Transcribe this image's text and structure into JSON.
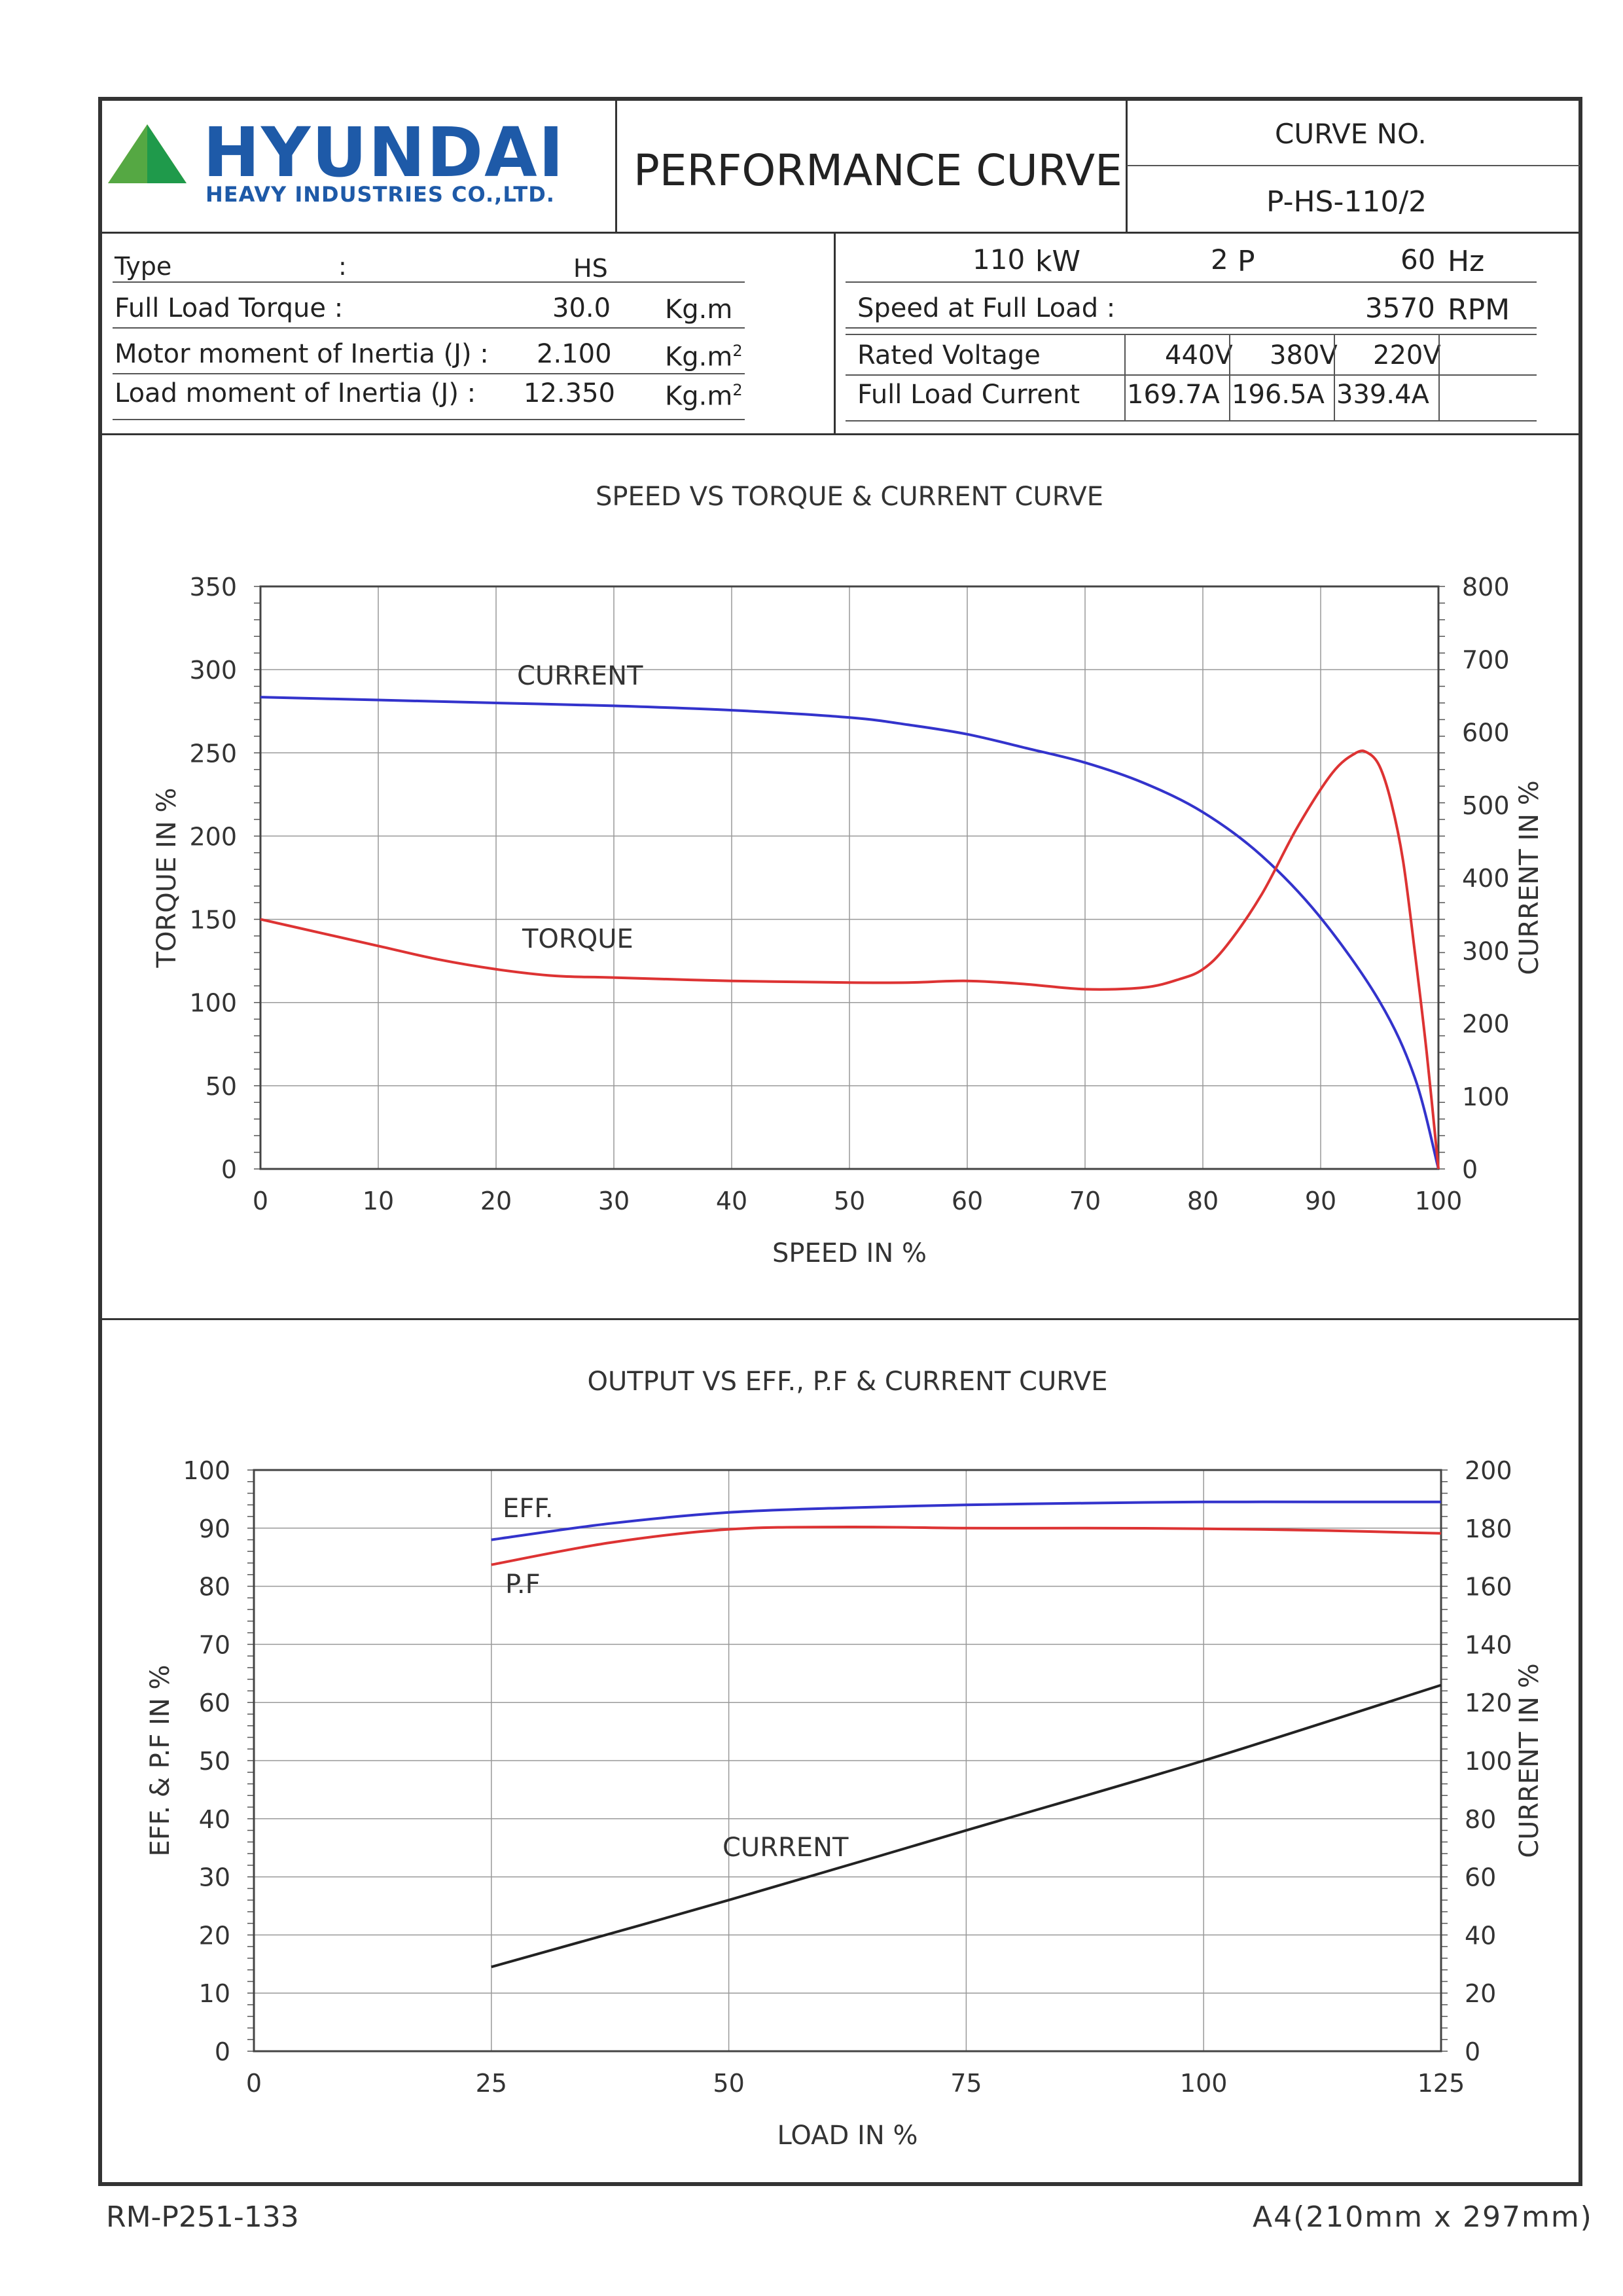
{
  "header": {
    "brand": "HYUNDAI",
    "brand_sub": "HEAVY INDUSTRIES CO.,LTD.",
    "title": "PERFORMANCE CURVE",
    "curve_no_label": "CURVE NO.",
    "curve_no": "P-HS-110/2"
  },
  "specs_left": {
    "type_label": "Type",
    "type_colon": ":",
    "type_value": "HS",
    "torque_label": "Full Load Torque :",
    "torque_value": "30.0",
    "torque_unit": "Kg.m",
    "motor_inertia_label": "Motor moment of Inertia (J) :",
    "motor_inertia_value": "2.100",
    "motor_inertia_unit": "Kg.m",
    "load_inertia_label": "Load moment of Inertia (J) :",
    "load_inertia_value": "12.350",
    "load_inertia_unit": "Kg.m",
    "unit_sup": "2"
  },
  "specs_right": {
    "power_value": "110",
    "power_unit": "kW",
    "poles_value": "2",
    "poles_unit": "P",
    "freq_value": "60",
    "freq_unit": "Hz",
    "speed_label": "Speed at Full Load :",
    "speed_value": "3570",
    "speed_unit": "RPM",
    "voltage_label": "Rated Voltage",
    "voltages": [
      "440V",
      "380V",
      "220V"
    ],
    "current_label": "Full Load Current",
    "currents": [
      "169.7A",
      "196.5A",
      "339.4A"
    ]
  },
  "colors": {
    "current_line": "#3333cc",
    "torque_line": "#dd3333",
    "eff_line": "#3333cc",
    "pf_line": "#dd3333",
    "load_current_line": "#222222",
    "grid": "#999999"
  },
  "chart_data": [
    {
      "type": "line",
      "title": "SPEED VS TORQUE & CURRENT CURVE",
      "xlabel": "SPEED IN %",
      "ylabel": "TORQUE IN %",
      "y2label": "CURRENT IN %",
      "xlim": [
        0,
        100
      ],
      "ylim": [
        0,
        350
      ],
      "y2lim": [
        0,
        800
      ],
      "xticks": [
        "0",
        "10",
        "20",
        "30",
        "40",
        "50",
        "60",
        "70",
        "80",
        "90",
        "100"
      ],
      "yticks": [
        "0",
        "50",
        "100",
        "150",
        "200",
        "250",
        "300",
        "350"
      ],
      "y2ticks": [
        "0",
        "100",
        "200",
        "300",
        "400",
        "500",
        "600",
        "700",
        "800"
      ],
      "grid": true,
      "series": [
        {
          "name": "CURRENT",
          "axis": "right",
          "x": [
            0,
            10,
            20,
            30,
            40,
            50,
            55,
            60,
            65,
            70,
            75,
            80,
            85,
            90,
            95,
            98,
            100
          ],
          "y": [
            648,
            644,
            640,
            636,
            630,
            620,
            610,
            597,
            578,
            558,
            530,
            490,
            430,
            345,
            230,
            125,
            0
          ]
        },
        {
          "name": "TORQUE",
          "axis": "left",
          "x": [
            0,
            5,
            10,
            15,
            20,
            25,
            30,
            40,
            50,
            55,
            60,
            65,
            70,
            75,
            78,
            80,
            82,
            85,
            88,
            91,
            93,
            94,
            95,
            96,
            97,
            98,
            99,
            100
          ],
          "y": [
            150,
            142,
            134,
            126,
            120,
            116,
            115,
            113,
            112,
            112,
            113,
            111,
            108,
            109,
            114,
            120,
            134,
            165,
            205,
            238,
            250,
            250,
            242,
            220,
            185,
            130,
            70,
            0
          ]
        }
      ]
    },
    {
      "type": "line",
      "title": "OUTPUT VS EFF., P.F & CURRENT CURVE",
      "xlabel": "LOAD IN %",
      "ylabel": "EFF. & P.F IN %",
      "y2label": "CURRENT IN %",
      "xlim": [
        0,
        125
      ],
      "ylim": [
        0,
        100
      ],
      "y2lim": [
        0,
        200
      ],
      "xticks": [
        "0",
        "25",
        "50",
        "75",
        "100",
        "125"
      ],
      "yticks": [
        "0",
        "10",
        "20",
        "30",
        "40",
        "50",
        "60",
        "70",
        "80",
        "90",
        "100"
      ],
      "y2ticks": [
        "0",
        "20",
        "40",
        "60",
        "80",
        "100",
        "120",
        "140",
        "160",
        "180",
        "200"
      ],
      "grid": true,
      "series": [
        {
          "name": "EFF.",
          "axis": "left",
          "x": [
            25,
            37.5,
            50,
            62.5,
            75,
            87.5,
            100,
            112.5,
            125
          ],
          "y": [
            88.0,
            90.8,
            92.7,
            93.5,
            94.0,
            94.3,
            94.5,
            94.5,
            94.5
          ]
        },
        {
          "name": "P.F",
          "axis": "left",
          "x": [
            25,
            37.5,
            50,
            62.5,
            75,
            87.5,
            100,
            112.5,
            125
          ],
          "y": [
            83.7,
            87.5,
            89.8,
            90.2,
            90.0,
            90.0,
            89.9,
            89.6,
            89.1
          ]
        },
        {
          "name": "CURRENT",
          "axis": "right",
          "x": [
            25,
            50,
            75,
            100,
            125
          ],
          "y": [
            29,
            52,
            76,
            100,
            126
          ]
        }
      ]
    }
  ],
  "footer": {
    "left": "RM-P251-133",
    "right": "A4(210mm x 297mm)"
  }
}
